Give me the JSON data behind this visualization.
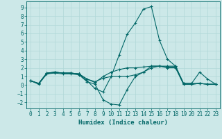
{
  "xlabel": "Humidex (Indice chaleur)",
  "bg_color": "#cce8e8",
  "line_color": "#006666",
  "grid_color": "#b0d8d8",
  "xlim": [
    -0.5,
    23.5
  ],
  "ylim": [
    -2.7,
    9.7
  ],
  "xticks": [
    0,
    1,
    2,
    3,
    4,
    5,
    6,
    7,
    8,
    9,
    10,
    11,
    12,
    13,
    14,
    15,
    16,
    17,
    18,
    19,
    20,
    21,
    22,
    23
  ],
  "yticks": [
    -2,
    -1,
    0,
    1,
    2,
    3,
    4,
    5,
    6,
    7,
    8,
    9
  ],
  "lines": [
    {
      "x": [
        0,
        1,
        2,
        3,
        4,
        5,
        6,
        7,
        8,
        9,
        10,
        11,
        12,
        13,
        14,
        15,
        16,
        17,
        18,
        19,
        20,
        21,
        22,
        23
      ],
      "y": [
        0.5,
        0.2,
        1.4,
        1.5,
        1.4,
        1.4,
        1.3,
        0.5,
        -0.4,
        -0.8,
        1.0,
        3.5,
        5.9,
        7.2,
        8.8,
        9.1,
        5.2,
        3.0,
        2.2,
        0.2,
        0.2,
        1.5,
        0.7,
        0.1
      ]
    },
    {
      "x": [
        0,
        1,
        2,
        3,
        4,
        5,
        6,
        7,
        8,
        9,
        10,
        11,
        12,
        13,
        14,
        15,
        16,
        17,
        18,
        19,
        20,
        21,
        22,
        23
      ],
      "y": [
        0.5,
        0.2,
        1.4,
        1.5,
        1.4,
        1.4,
        1.3,
        0.7,
        0.3,
        1.0,
        1.5,
        1.8,
        2.0,
        2.0,
        2.1,
        2.2,
        2.2,
        2.2,
        2.2,
        0.2,
        0.2,
        0.2,
        0.1,
        0.1
      ]
    },
    {
      "x": [
        0,
        1,
        2,
        3,
        4,
        5,
        6,
        7,
        8,
        9,
        10,
        11,
        12,
        13,
        14,
        15,
        16,
        17,
        18,
        19,
        20,
        21,
        22,
        23
      ],
      "y": [
        0.5,
        0.2,
        1.3,
        1.5,
        1.4,
        1.4,
        1.3,
        0.7,
        0.4,
        0.8,
        1.0,
        1.0,
        1.0,
        1.2,
        1.5,
        2.2,
        2.2,
        2.0,
        2.0,
        0.1,
        0.1,
        0.2,
        0.1,
        0.1
      ]
    },
    {
      "x": [
        0,
        1,
        2,
        3,
        4,
        5,
        6,
        7,
        8,
        9,
        10,
        11,
        12,
        13,
        14,
        15,
        16,
        17,
        18,
        19,
        20,
        21,
        22,
        23
      ],
      "y": [
        0.5,
        0.1,
        1.3,
        1.4,
        1.3,
        1.3,
        1.2,
        0.4,
        0.1,
        -1.7,
        -2.2,
        -2.3,
        -0.5,
        1.0,
        1.5,
        2.0,
        2.2,
        2.1,
        2.1,
        0.1,
        0.1,
        0.2,
        0.1,
        0.1
      ]
    }
  ]
}
